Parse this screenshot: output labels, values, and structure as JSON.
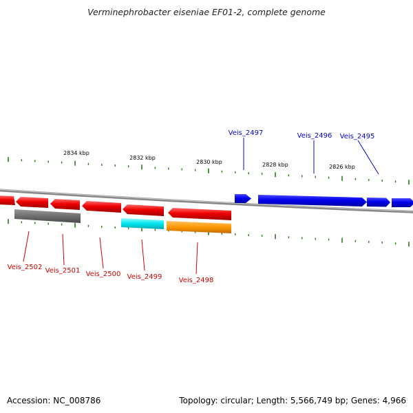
{
  "title": "Verminephrobacter eiseniae EF01-2, complete genome",
  "footer": {
    "accession": "Accession: NC_008786",
    "summary": "Topology: circular; Length: 5,566,749 bp; Genes: 4,966"
  },
  "colors": {
    "backbone": "#888888",
    "tick": "#2a7a1a",
    "forward_gene": "#0000ee",
    "reverse_gene": "#ee0000",
    "grey_feature": "#6e6e6e",
    "cyan_feature": "#00e5ee",
    "orange_feature": "#ff9900"
  },
  "scale_labels": [
    "2834 kbp",
    "2832 kbp",
    "2830 kbp",
    "2828 kbp",
    "2826 kbp"
  ],
  "genes": [
    {
      "locus": "Veis_2495",
      "strand": "+"
    },
    {
      "locus": "Veis_2496",
      "strand": "+"
    },
    {
      "locus": "Veis_2497",
      "strand": "+"
    },
    {
      "locus": "Veis_2498",
      "strand": "-"
    },
    {
      "locus": "Veis_2499",
      "strand": "-"
    },
    {
      "locus": "Veis_2500",
      "strand": "-"
    },
    {
      "locus": "Veis_2501",
      "strand": "-"
    },
    {
      "locus": "Veis_2502",
      "strand": "-"
    }
  ]
}
